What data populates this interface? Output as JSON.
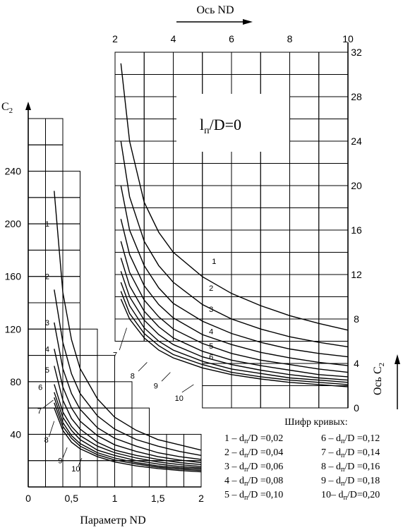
{
  "chart_data": [
    {
      "type": "line",
      "panel": "left",
      "xlabel": "Параметр ND",
      "ylabel": "C",
      "ylabel_sub": "2",
      "xlim": [
        0,
        2
      ],
      "ylim": [
        0,
        280
      ],
      "xticks": [
        "0",
        "0,5",
        "1",
        "1,5",
        "2"
      ],
      "yticks": [
        "40",
        "80",
        "120",
        "160",
        "200",
        "240"
      ],
      "grid": true,
      "series": [
        {
          "name": "1",
          "points": [
            [
              0.3,
              225
            ],
            [
              0.4,
              148
            ],
            [
              0.5,
              112
            ],
            [
              0.6,
              90
            ],
            [
              0.8,
              67
            ],
            [
              1.0,
              53
            ],
            [
              1.25,
              43
            ],
            [
              1.5,
              36
            ],
            [
              1.75,
              32
            ],
            [
              2.0,
              28
            ]
          ]
        },
        {
          "name": "2",
          "points": [
            [
              0.3,
              150
            ],
            [
              0.4,
              110
            ],
            [
              0.5,
              86
            ],
            [
              0.6,
              71
            ],
            [
              0.8,
              54
            ],
            [
              1.0,
              44
            ],
            [
              1.25,
              36
            ],
            [
              1.5,
              31
            ],
            [
              1.75,
              27
            ],
            [
              2.0,
              24
            ]
          ]
        },
        {
          "name": "3",
          "points": [
            [
              0.3,
              125
            ],
            [
              0.4,
              90
            ],
            [
              0.5,
              71
            ],
            [
              0.6,
              59
            ],
            [
              0.8,
              45
            ],
            [
              1.0,
              37
            ],
            [
              1.25,
              31
            ],
            [
              1.5,
              26
            ],
            [
              1.75,
              23
            ],
            [
              2.0,
              21
            ]
          ]
        },
        {
          "name": "4",
          "points": [
            [
              0.3,
              105
            ],
            [
              0.4,
              76
            ],
            [
              0.5,
              60
            ],
            [
              0.6,
              50
            ],
            [
              0.8,
              39
            ],
            [
              1.0,
              32
            ],
            [
              1.25,
              27
            ],
            [
              1.5,
              23
            ],
            [
              1.75,
              20.5
            ],
            [
              2.0,
              18.5
            ]
          ]
        },
        {
          "name": "5",
          "points": [
            [
              0.3,
              92
            ],
            [
              0.4,
              66
            ],
            [
              0.5,
              52
            ],
            [
              0.6,
              44
            ],
            [
              0.8,
              34
            ],
            [
              1.0,
              28
            ],
            [
              1.25,
              24
            ],
            [
              1.5,
              21
            ],
            [
              1.75,
              18.5
            ],
            [
              2.0,
              17
            ]
          ]
        },
        {
          "name": "6",
          "points": [
            [
              0.3,
              78
            ],
            [
              0.4,
              57
            ],
            [
              0.5,
              46
            ],
            [
              0.6,
              39
            ],
            [
              0.8,
              31
            ],
            [
              1.0,
              26
            ],
            [
              1.25,
              22
            ],
            [
              1.5,
              19
            ],
            [
              1.75,
              17
            ],
            [
              2.0,
              15.5
            ]
          ]
        },
        {
          "name": "7",
          "points": [
            [
              0.3,
              72
            ],
            [
              0.4,
              53
            ],
            [
              0.5,
              43
            ],
            [
              0.6,
              36
            ],
            [
              0.8,
              28
            ],
            [
              1.0,
              24
            ],
            [
              1.25,
              20
            ],
            [
              1.5,
              17.5
            ],
            [
              1.75,
              15.5
            ],
            [
              2.0,
              14.5
            ]
          ]
        },
        {
          "name": "8",
          "points": [
            [
              0.3,
              68
            ],
            [
              0.4,
              49
            ],
            [
              0.5,
              39
            ],
            [
              0.6,
              33
            ],
            [
              0.8,
              26
            ],
            [
              1.0,
              22
            ],
            [
              1.25,
              18.5
            ],
            [
              1.5,
              16
            ],
            [
              1.75,
              14.5
            ],
            [
              2.0,
              13.5
            ]
          ]
        },
        {
          "name": "9",
          "points": [
            [
              0.3,
              64
            ],
            [
              0.4,
              46
            ],
            [
              0.5,
              37
            ],
            [
              0.6,
              31
            ],
            [
              0.8,
              24.5
            ],
            [
              1.0,
              20.5
            ],
            [
              1.25,
              17.5
            ],
            [
              1.5,
              15
            ],
            [
              1.75,
              13.5
            ],
            [
              2.0,
              12.5
            ]
          ]
        },
        {
          "name": "10",
          "points": [
            [
              0.3,
              60
            ],
            [
              0.4,
              43
            ],
            [
              0.5,
              34
            ],
            [
              0.6,
              29
            ],
            [
              0.8,
              23
            ],
            [
              1.0,
              19
            ],
            [
              1.25,
              16
            ],
            [
              1.5,
              14
            ],
            [
              1.75,
              12.5
            ],
            [
              2.0,
              11.5
            ]
          ]
        }
      ]
    },
    {
      "type": "line",
      "panel": "right",
      "title": "l",
      "title_sub": "п",
      "title_rest": "/D=0",
      "xlabel": "Ось ND",
      "ylabel": "Ось C",
      "ylabel_sub": "2",
      "xlim": [
        2,
        10
      ],
      "ylim": [
        0,
        32
      ],
      "xticks": [
        "2",
        "4",
        "6",
        "8",
        "10"
      ],
      "yticks": [
        "0",
        "4",
        "8",
        "12",
        "16",
        "20",
        "24",
        "28",
        "32"
      ],
      "grid": true,
      "series": [
        {
          "name": "1",
          "points": [
            [
              2.2,
              31
            ],
            [
              2.5,
              24
            ],
            [
              3,
              18.5
            ],
            [
              3.5,
              15.8
            ],
            [
              4,
              14
            ],
            [
              5,
              11.8
            ],
            [
              6,
              10.3
            ],
            [
              7,
              9.2
            ],
            [
              8,
              8.3
            ],
            [
              9,
              7.6
            ],
            [
              10,
              7
            ]
          ]
        },
        {
          "name": "2",
          "points": [
            [
              2.2,
              24
            ],
            [
              2.5,
              19
            ],
            [
              3,
              15
            ],
            [
              3.5,
              12.8
            ],
            [
              4,
              11.3
            ],
            [
              5,
              9.3
            ],
            [
              6,
              8
            ],
            [
              7,
              7.1
            ],
            [
              8,
              6.4
            ],
            [
              9,
              5.9
            ],
            [
              10,
              5.5
            ]
          ]
        },
        {
          "name": "3",
          "points": [
            [
              2.2,
              20
            ],
            [
              2.5,
              16
            ],
            [
              3,
              12.8
            ],
            [
              3.5,
              10.8
            ],
            [
              4,
              9.4
            ],
            [
              5,
              7.8
            ],
            [
              6,
              6.7
            ],
            [
              7,
              5.9
            ],
            [
              8,
              5.3
            ],
            [
              9,
              4.9
            ],
            [
              10,
              4.6
            ]
          ]
        },
        {
          "name": "4",
          "points": [
            [
              2.2,
              17
            ],
            [
              2.5,
              13.8
            ],
            [
              3,
              11
            ],
            [
              3.5,
              9.3
            ],
            [
              4,
              8.1
            ],
            [
              5,
              6.6
            ],
            [
              6,
              5.7
            ],
            [
              7,
              5
            ],
            [
              8,
              4.5
            ],
            [
              9,
              4.1
            ],
            [
              10,
              3.8
            ]
          ]
        },
        {
          "name": "5",
          "points": [
            [
              2.2,
              15
            ],
            [
              2.5,
              12.2
            ],
            [
              3,
              9.7
            ],
            [
              3.5,
              8.2
            ],
            [
              4,
              7.1
            ],
            [
              5,
              5.8
            ],
            [
              6,
              4.9
            ],
            [
              7,
              4.3
            ],
            [
              8,
              3.9
            ],
            [
              9,
              3.5
            ],
            [
              10,
              3.2
            ]
          ]
        },
        {
          "name": "6",
          "points": [
            [
              2.2,
              13.5
            ],
            [
              2.5,
              11
            ],
            [
              3,
              8.7
            ],
            [
              3.5,
              7.3
            ],
            [
              4,
              6.3
            ],
            [
              5,
              5.1
            ],
            [
              6,
              4.3
            ],
            [
              7,
              3.8
            ],
            [
              8,
              3.4
            ],
            [
              9,
              3
            ],
            [
              10,
              2.8
            ]
          ]
        },
        {
          "name": "7",
          "points": [
            [
              2.2,
              12.3
            ],
            [
              2.5,
              10
            ],
            [
              3,
              7.9
            ],
            [
              3.5,
              6.6
            ],
            [
              4,
              5.7
            ],
            [
              5,
              4.6
            ],
            [
              6,
              3.9
            ],
            [
              7,
              3.4
            ],
            [
              8,
              3
            ],
            [
              9,
              2.7
            ],
            [
              10,
              2.5
            ]
          ]
        },
        {
          "name": "8",
          "points": [
            [
              2.2,
              11.3
            ],
            [
              2.5,
              9.2
            ],
            [
              3,
              7.2
            ],
            [
              3.5,
              6
            ],
            [
              4,
              5.2
            ],
            [
              5,
              4.2
            ],
            [
              6,
              3.5
            ],
            [
              7,
              3.1
            ],
            [
              8,
              2.7
            ],
            [
              9,
              2.5
            ],
            [
              10,
              2.3
            ]
          ]
        },
        {
          "name": "9",
          "points": [
            [
              2.2,
              10.5
            ],
            [
              2.5,
              8.5
            ],
            [
              3,
              6.7
            ],
            [
              3.5,
              5.6
            ],
            [
              4,
              4.8
            ],
            [
              5,
              3.9
            ],
            [
              6,
              3.2
            ],
            [
              7,
              2.8
            ],
            [
              8,
              2.5
            ],
            [
              9,
              2.3
            ],
            [
              10,
              2.1
            ]
          ]
        },
        {
          "name": "10",
          "points": [
            [
              2.2,
              9.8
            ],
            [
              2.5,
              8
            ],
            [
              3,
              6.3
            ],
            [
              3.5,
              5.2
            ],
            [
              4,
              4.5
            ],
            [
              5,
              3.6
            ],
            [
              6,
              3
            ],
            [
              7,
              2.6
            ],
            [
              8,
              2.3
            ],
            [
              9,
              2.1
            ],
            [
              10,
              1.9
            ]
          ]
        }
      ]
    }
  ],
  "legend": {
    "title": "Шифр кривых:",
    "items": [
      {
        "num": "1",
        "sep": " – ",
        "sub": "п",
        "value": "/D =0,02"
      },
      {
        "num": "2",
        "sep": " – ",
        "sub": "п",
        "value": "/D =0,04"
      },
      {
        "num": "3",
        "sep": " – ",
        "sub": "п",
        "value": "/D =0,06"
      },
      {
        "num": "4",
        "sep": " – ",
        "sub": "п",
        "value": "/D =0,08"
      },
      {
        "num": "5",
        "sep": " – ",
        "sub": "п",
        "value": "/D =0,10"
      },
      {
        "num": "6",
        "sep": " – ",
        "sub": "п",
        "value": "/D =0,12"
      },
      {
        "num": "7",
        "sep": " – ",
        "sub": "п",
        "value": "/D =0,14"
      },
      {
        "num": "8",
        "sep": " – ",
        "sub": "п",
        "value": "/D =0,16"
      },
      {
        "num": "9",
        "sep": " – ",
        "sub": "п",
        "value": "/D =0,18"
      },
      {
        "num": "10",
        "sep": "– ",
        "sub": "п",
        "value": "/D=0,20"
      }
    ]
  },
  "colors": {
    "line": "#000000",
    "background": "#ffffff"
  }
}
